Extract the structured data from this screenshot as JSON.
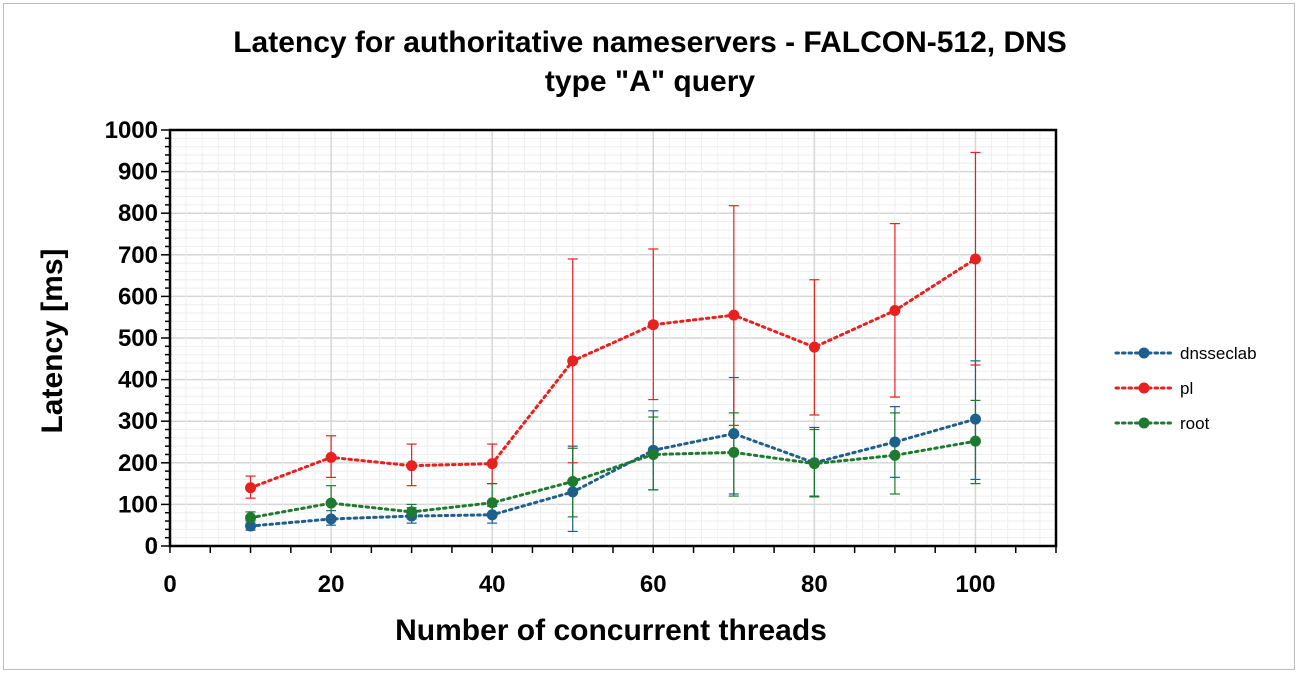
{
  "chart_data": {
    "type": "line",
    "title_line1": "Latency for authoritative nameservers - FALCON-512, DNS",
    "title_line2": "type \"A\" query",
    "xlabel": "Number of concurrent threads",
    "ylabel": "Latency [ms]",
    "xlim": [
      0,
      110
    ],
    "ylim": [
      0,
      1000
    ],
    "x_ticks": [
      0,
      20,
      40,
      60,
      80,
      100
    ],
    "y_ticks": [
      0,
      100,
      200,
      300,
      400,
      500,
      600,
      700,
      800,
      900,
      1000
    ],
    "grid": true,
    "legend_position": "right",
    "series": [
      {
        "name": "dnsseclab",
        "color": "#1f5f8b",
        "x": [
          10,
          20,
          30,
          40,
          50,
          60,
          70,
          80,
          90,
          100
        ],
        "y": [
          48,
          65,
          72,
          75,
          130,
          230,
          270,
          200,
          250,
          305
        ],
        "err_low": [
          38,
          50,
          55,
          55,
          35,
          135,
          125,
          120,
          165,
          160
        ],
        "err_high": [
          60,
          85,
          92,
          95,
          240,
          325,
          405,
          285,
          335,
          445
        ]
      },
      {
        "name": "pl",
        "color": "#e8201f",
        "x": [
          10,
          20,
          30,
          40,
          50,
          60,
          70,
          80,
          90,
          100
        ],
        "y": [
          140,
          213,
          193,
          198,
          445,
          532,
          555,
          478,
          566,
          690
        ],
        "err_low": [
          115,
          165,
          145,
          150,
          200,
          352,
          290,
          315,
          358,
          435
        ],
        "err_high": [
          168,
          265,
          245,
          245,
          690,
          714,
          818,
          640,
          775,
          946
        ]
      },
      {
        "name": "root",
        "color": "#1e7a2e",
        "x": [
          10,
          20,
          30,
          40,
          50,
          60,
          70,
          80,
          90,
          100
        ],
        "y": [
          68,
          103,
          82,
          104,
          155,
          220,
          225,
          198,
          218,
          252
        ],
        "err_low": [
          55,
          65,
          65,
          70,
          70,
          135,
          120,
          118,
          125,
          150
        ],
        "err_high": [
          82,
          145,
          100,
          150,
          235,
          310,
          320,
          280,
          320,
          350
        ]
      }
    ]
  }
}
